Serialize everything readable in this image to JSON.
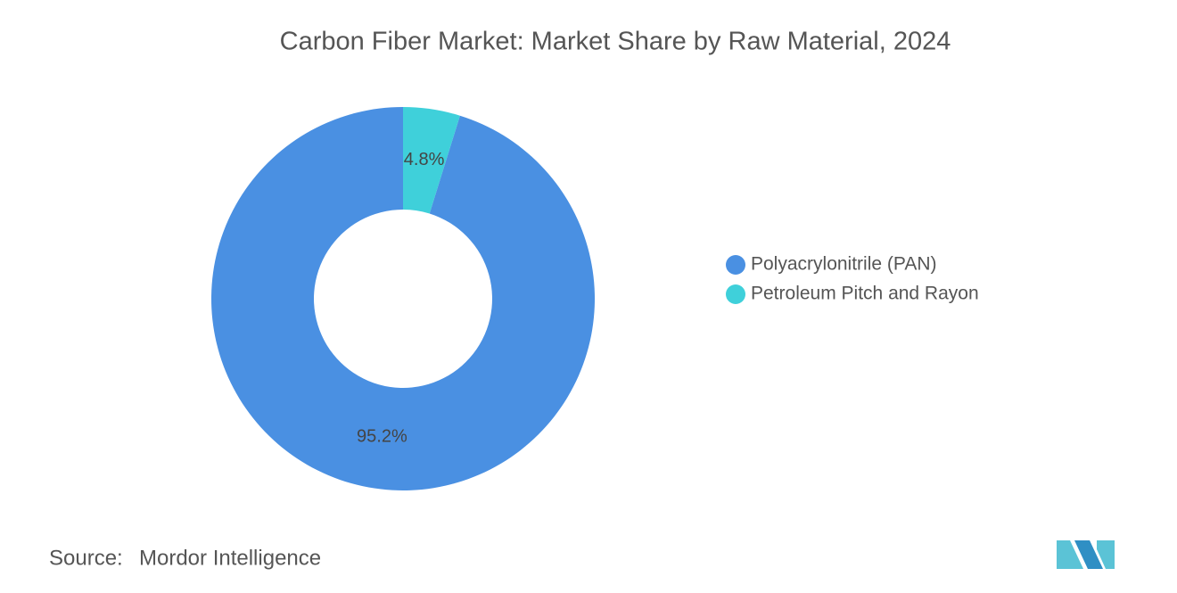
{
  "chart_data": {
    "type": "donut",
    "title": "Carbon Fiber Market: Market Share by Raw Material, 2024",
    "categories": [
      "Polyacrylonitrile (PAN)",
      "Petroleum Pitch and Rayon"
    ],
    "values": [
      95.2,
      4.8
    ],
    "value_labels": [
      "95.2%",
      "4.8%"
    ],
    "colors": [
      "#4a90e2",
      "#3fd0da"
    ],
    "legend": "right",
    "source_label": "Source:",
    "source": "Mordor Intelligence"
  }
}
